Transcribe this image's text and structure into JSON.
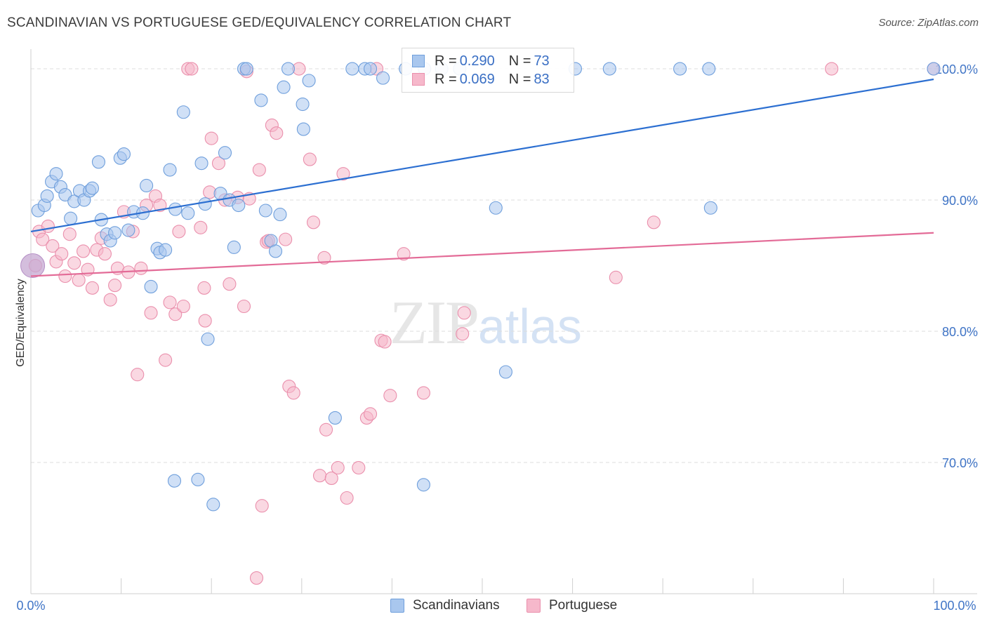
{
  "title": "SCANDINAVIAN VS PORTUGUESE GED/EQUIVALENCY CORRELATION CHART",
  "source": "Source: ZipAtlas.com",
  "watermark": {
    "zip": "ZIP",
    "atlas": "atlas"
  },
  "legend": {
    "rows": [
      {
        "r_label": "R = ",
        "r_value": "0.290",
        "n_label": "N = ",
        "n_value": "73"
      },
      {
        "r_label": "R = ",
        "r_value": "0.069",
        "n_label": "N = ",
        "n_value": "83"
      }
    ]
  },
  "bottom_legend": [
    "Scandinavians",
    "Portuguese"
  ],
  "colors": {
    "blue_fill": "#a9c7ee",
    "blue_stroke": "#6f9fdc",
    "blue_line": "#2c6fd1",
    "pink_fill": "#f6b8cb",
    "pink_stroke": "#ea8fac",
    "pink_line": "#e36b97",
    "axis_label": "#3f74c6",
    "grid": "#dddddd"
  },
  "chart_data": {
    "type": "scatter",
    "title": "SCANDINAVIAN VS PORTUGUESE GED/EQUIVALENCY CORRELATION CHART",
    "xlabel": "",
    "ylabel": "GED/Equivalency",
    "xlim": [
      0,
      100
    ],
    "ylim": [
      60,
      101.5
    ],
    "x_tick_labels": [
      "0.0%",
      "100.0%"
    ],
    "y_ticks": [
      70,
      80,
      90,
      100
    ],
    "y_tick_labels": [
      "70.0%",
      "80.0%",
      "90.0%",
      "100.0%"
    ],
    "grid": true,
    "series": [
      {
        "name": "Scandinavians",
        "r": 0.29,
        "n": 73,
        "trend": {
          "x": [
            0,
            100
          ],
          "y": [
            87.6,
            99.2
          ]
        },
        "points": [
          [
            0.8,
            89.2
          ],
          [
            1.5,
            89.6
          ],
          [
            1.8,
            90.3
          ],
          [
            2.3,
            91.4
          ],
          [
            2.8,
            92.0
          ],
          [
            3.3,
            91.0
          ],
          [
            3.8,
            90.4
          ],
          [
            4.4,
            88.6
          ],
          [
            4.8,
            89.9
          ],
          [
            5.4,
            90.7
          ],
          [
            5.9,
            90.0
          ],
          [
            6.5,
            90.7
          ],
          [
            6.8,
            90.9
          ],
          [
            7.5,
            92.9
          ],
          [
            7.8,
            88.5
          ],
          [
            8.4,
            87.4
          ],
          [
            8.8,
            86.9
          ],
          [
            9.3,
            87.5
          ],
          [
            9.9,
            93.2
          ],
          [
            10.3,
            93.5
          ],
          [
            10.8,
            87.7
          ],
          [
            11.4,
            89.1
          ],
          [
            12.4,
            89.0
          ],
          [
            12.8,
            91.1
          ],
          [
            13.3,
            83.4
          ],
          [
            14.0,
            86.3
          ],
          [
            14.3,
            86.0
          ],
          [
            14.9,
            86.2
          ],
          [
            15.4,
            92.3
          ],
          [
            16.0,
            89.3
          ],
          [
            16.9,
            96.7
          ],
          [
            17.4,
            89.0
          ],
          [
            18.5,
            68.7
          ],
          [
            18.9,
            92.8
          ],
          [
            19.3,
            89.7
          ],
          [
            19.6,
            79.4
          ],
          [
            20.2,
            66.8
          ],
          [
            21.0,
            90.5
          ],
          [
            21.5,
            93.6
          ],
          [
            22.0,
            90.0
          ],
          [
            22.5,
            86.4
          ],
          [
            23.0,
            89.6
          ],
          [
            23.6,
            100.0
          ],
          [
            23.9,
            100.0
          ],
          [
            25.5,
            97.6
          ],
          [
            26.0,
            89.2
          ],
          [
            26.6,
            86.9
          ],
          [
            27.1,
            86.1
          ],
          [
            27.6,
            88.9
          ],
          [
            28.0,
            98.6
          ],
          [
            28.5,
            100.0
          ],
          [
            30.1,
            97.3
          ],
          [
            30.8,
            99.1
          ],
          [
            30.2,
            95.4
          ],
          [
            33.7,
            73.4
          ],
          [
            35.6,
            100.0
          ],
          [
            37.0,
            100.0
          ],
          [
            37.6,
            100.0
          ],
          [
            39.0,
            99.3
          ],
          [
            41.5,
            100.0
          ],
          [
            43.6,
            100.0
          ],
          [
            45.5,
            100.0
          ],
          [
            47.5,
            100.0
          ],
          [
            51.5,
            89.4
          ],
          [
            52.6,
            76.9
          ],
          [
            60.3,
            100.0
          ],
          [
            64.1,
            100.0
          ],
          [
            71.9,
            100.0
          ],
          [
            75.1,
            100.0
          ],
          [
            75.3,
            89.4
          ],
          [
            43.5,
            68.3
          ],
          [
            15.9,
            68.6
          ],
          [
            100.0,
            100.0
          ]
        ]
      },
      {
        "name": "Portuguese",
        "r": 0.069,
        "n": 83,
        "trend": {
          "x": [
            0,
            100
          ],
          "y": [
            84.2,
            87.5
          ]
        },
        "points": [
          [
            0.5,
            85.0
          ],
          [
            0.9,
            87.6
          ],
          [
            1.3,
            87.0
          ],
          [
            1.9,
            88.0
          ],
          [
            2.4,
            86.5
          ],
          [
            2.8,
            85.3
          ],
          [
            3.4,
            85.9
          ],
          [
            3.8,
            84.2
          ],
          [
            4.3,
            87.4
          ],
          [
            4.8,
            85.2
          ],
          [
            5.3,
            83.9
          ],
          [
            5.8,
            86.1
          ],
          [
            6.3,
            84.7
          ],
          [
            6.8,
            83.3
          ],
          [
            7.3,
            86.2
          ],
          [
            7.8,
            87.1
          ],
          [
            8.2,
            85.9
          ],
          [
            8.8,
            82.4
          ],
          [
            9.3,
            83.5
          ],
          [
            9.6,
            84.8
          ],
          [
            10.3,
            89.1
          ],
          [
            10.8,
            84.5
          ],
          [
            11.3,
            87.6
          ],
          [
            11.8,
            76.7
          ],
          [
            12.2,
            84.8
          ],
          [
            12.8,
            89.6
          ],
          [
            13.3,
            81.4
          ],
          [
            13.8,
            90.3
          ],
          [
            14.3,
            89.6
          ],
          [
            14.9,
            77.8
          ],
          [
            15.4,
            82.2
          ],
          [
            16.0,
            81.3
          ],
          [
            16.4,
            87.6
          ],
          [
            16.9,
            81.9
          ],
          [
            17.4,
            100.0
          ],
          [
            17.8,
            100.0
          ],
          [
            18.8,
            87.9
          ],
          [
            19.2,
            83.3
          ],
          [
            19.3,
            80.8
          ],
          [
            19.8,
            90.6
          ],
          [
            20.0,
            94.7
          ],
          [
            20.8,
            92.8
          ],
          [
            21.5,
            90.0
          ],
          [
            22.0,
            83.6
          ],
          [
            22.9,
            90.2
          ],
          [
            23.6,
            81.9
          ],
          [
            23.9,
            99.8
          ],
          [
            24.2,
            90.1
          ],
          [
            25.0,
            61.2
          ],
          [
            25.3,
            92.3
          ],
          [
            25.6,
            66.7
          ],
          [
            26.1,
            86.8
          ],
          [
            26.7,
            95.7
          ],
          [
            27.2,
            95.1
          ],
          [
            28.2,
            87.0
          ],
          [
            28.6,
            75.8
          ],
          [
            29.1,
            75.3
          ],
          [
            29.7,
            100.0
          ],
          [
            30.9,
            93.1
          ],
          [
            31.3,
            88.3
          ],
          [
            32.0,
            69.0
          ],
          [
            32.5,
            85.6
          ],
          [
            32.7,
            72.5
          ],
          [
            33.3,
            68.8
          ],
          [
            34.0,
            69.6
          ],
          [
            34.6,
            92.0
          ],
          [
            35.0,
            67.3
          ],
          [
            36.3,
            69.6
          ],
          [
            37.2,
            73.4
          ],
          [
            37.6,
            73.7
          ],
          [
            38.3,
            100.0
          ],
          [
            38.8,
            79.3
          ],
          [
            39.2,
            79.2
          ],
          [
            39.8,
            75.1
          ],
          [
            41.3,
            85.9
          ],
          [
            43.5,
            75.3
          ],
          [
            47.8,
            79.8
          ],
          [
            48.0,
            81.4
          ],
          [
            64.8,
            84.1
          ],
          [
            69.0,
            88.3
          ],
          [
            88.7,
            100.0
          ],
          [
            100.0,
            100.0
          ],
          [
            26.3,
            86.9
          ]
        ]
      }
    ]
  }
}
